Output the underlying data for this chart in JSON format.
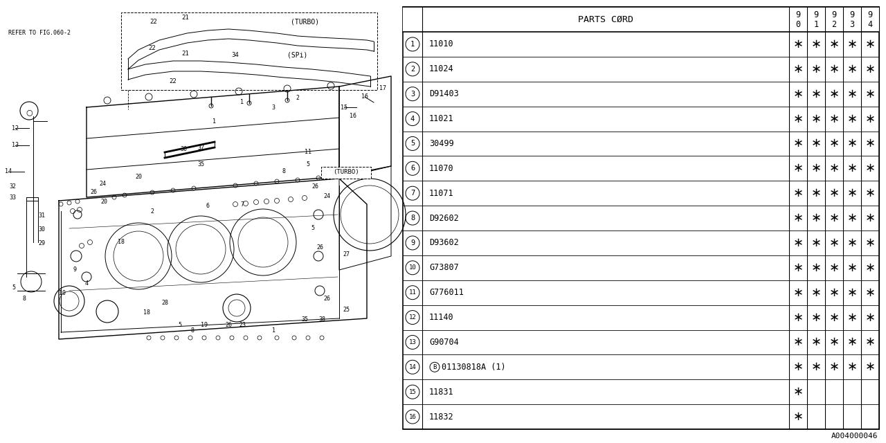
{
  "diagram_ref": "A004000046",
  "table": {
    "rows": [
      {
        "num": "1",
        "part": "11010",
        "marks": [
          true,
          true,
          true,
          true,
          true
        ]
      },
      {
        "num": "2",
        "part": "11024",
        "marks": [
          true,
          true,
          true,
          true,
          true
        ]
      },
      {
        "num": "3",
        "part": "D91403",
        "marks": [
          true,
          true,
          true,
          true,
          true
        ]
      },
      {
        "num": "4",
        "part": "11021",
        "marks": [
          true,
          true,
          true,
          true,
          true
        ]
      },
      {
        "num": "5",
        "part": "30499",
        "marks": [
          true,
          true,
          true,
          true,
          true
        ]
      },
      {
        "num": "6",
        "part": "11070",
        "marks": [
          true,
          true,
          true,
          true,
          true
        ]
      },
      {
        "num": "7",
        "part": "11071",
        "marks": [
          true,
          true,
          true,
          true,
          true
        ]
      },
      {
        "num": "8",
        "part": "D92602",
        "marks": [
          true,
          true,
          true,
          true,
          true
        ]
      },
      {
        "num": "9",
        "part": "D93602",
        "marks": [
          true,
          true,
          true,
          true,
          true
        ]
      },
      {
        "num": "10",
        "part": "G73807",
        "marks": [
          true,
          true,
          true,
          true,
          true
        ]
      },
      {
        "num": "11",
        "part": "G776011",
        "marks": [
          true,
          true,
          true,
          true,
          true
        ]
      },
      {
        "num": "12",
        "part": "11140",
        "marks": [
          true,
          true,
          true,
          true,
          true
        ]
      },
      {
        "num": "13",
        "part": "G90704",
        "marks": [
          true,
          true,
          true,
          true,
          true
        ]
      },
      {
        "num": "14",
        "part": "B_01130818A (1)",
        "marks": [
          true,
          true,
          true,
          true,
          true
        ]
      },
      {
        "num": "15",
        "part": "11831",
        "marks": [
          true,
          false,
          false,
          false,
          false
        ]
      },
      {
        "num": "16",
        "part": "11832",
        "marks": [
          true,
          false,
          false,
          false,
          false
        ]
      }
    ]
  },
  "bg_color": "#ffffff"
}
